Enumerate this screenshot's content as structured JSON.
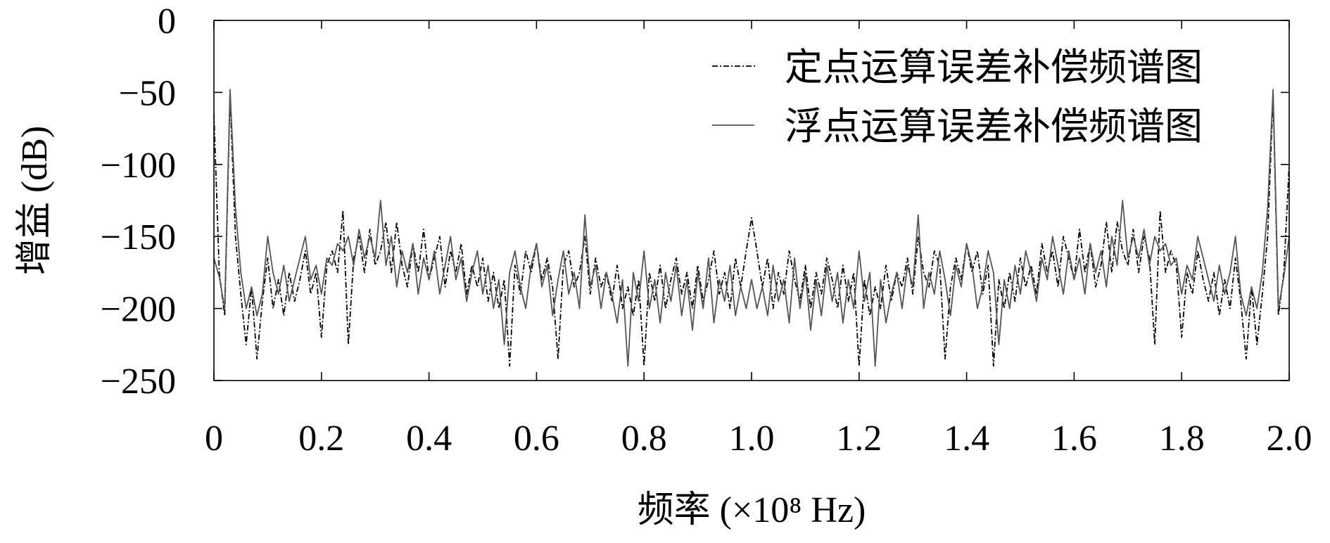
{
  "chart_data": {
    "type": "line",
    "xlabel": "频率 (×10⁸ Hz)",
    "ylabel": "增益 (dB)",
    "xlim": [
      0,
      2.0
    ],
    "ylim": [
      -250,
      0
    ],
    "x_ticks": [
      0,
      0.2,
      0.4,
      0.6,
      0.8,
      1.0,
      1.2,
      1.4,
      1.6,
      1.8,
      2.0
    ],
    "x_tick_labels": [
      "0",
      "0.2",
      "0.4",
      "0.6",
      "0.8",
      "1.0",
      "1.2",
      "1.4",
      "1.6",
      "1.8",
      "2.0"
    ],
    "y_ticks": [
      0,
      -50,
      -100,
      -150,
      -200,
      -250
    ],
    "y_tick_labels": [
      "0",
      "−50",
      "−100",
      "−150",
      "−200",
      "−250"
    ],
    "grid": false,
    "legend": "top-right",
    "x": [
      0,
      0.01,
      0.02,
      0.03,
      0.04,
      0.05,
      0.06,
      0.07,
      0.08,
      0.09,
      0.1,
      0.11,
      0.12,
      0.13,
      0.14,
      0.15,
      0.16,
      0.17,
      0.18,
      0.19,
      0.2,
      0.21,
      0.22,
      0.23,
      0.24,
      0.25,
      0.26,
      0.27,
      0.28,
      0.29,
      0.3,
      0.31,
      0.32,
      0.33,
      0.34,
      0.35,
      0.36,
      0.37,
      0.38,
      0.39,
      0.4,
      0.41,
      0.42,
      0.43,
      0.44,
      0.45,
      0.46,
      0.47,
      0.48,
      0.49,
      0.5,
      0.51,
      0.52,
      0.53,
      0.54,
      0.55,
      0.56,
      0.57,
      0.58,
      0.59,
      0.6,
      0.61,
      0.62,
      0.63,
      0.64,
      0.65,
      0.66,
      0.67,
      0.68,
      0.69,
      0.7,
      0.71,
      0.72,
      0.73,
      0.74,
      0.75,
      0.76,
      0.77,
      0.78,
      0.79,
      0.8,
      0.81,
      0.82,
      0.83,
      0.84,
      0.85,
      0.86,
      0.87,
      0.88,
      0.89,
      0.9,
      0.91,
      0.92,
      0.93,
      0.94,
      0.95,
      0.96,
      0.97,
      0.98,
      0.99,
      1,
      1.01,
      1.02,
      1.03,
      1.04,
      1.05,
      1.06,
      1.07,
      1.08,
      1.09,
      1.1,
      1.11,
      1.12,
      1.13,
      1.14,
      1.15,
      1.16,
      1.17,
      1.18,
      1.19,
      1.2,
      1.21,
      1.22,
      1.23,
      1.24,
      1.25,
      1.26,
      1.27,
      1.28,
      1.29,
      1.3,
      1.31,
      1.32,
      1.33,
      1.34,
      1.35,
      1.36,
      1.37,
      1.38,
      1.39,
      1.4,
      1.41,
      1.42,
      1.43,
      1.44,
      1.45,
      1.46,
      1.47,
      1.48,
      1.49,
      1.5,
      1.51,
      1.52,
      1.53,
      1.54,
      1.55,
      1.56,
      1.57,
      1.58,
      1.59,
      1.6,
      1.61,
      1.62,
      1.63,
      1.64,
      1.65,
      1.66,
      1.67,
      1.68,
      1.69,
      1.7,
      1.71,
      1.72,
      1.73,
      1.74,
      1.75,
      1.76,
      1.77,
      1.78,
      1.79,
      1.8,
      1.81,
      1.82,
      1.83,
      1.84,
      1.85,
      1.86,
      1.87,
      1.88,
      1.89,
      1.9,
      1.91,
      1.92,
      1.93,
      1.94,
      1.95,
      1.96,
      1.97,
      1.98,
      1.99,
      2
    ],
    "series": [
      {
        "name": "定点运算误差补偿频谱图",
        "linestyle": "dash-dot",
        "color": "#000000",
        "values": [
          -65,
          -175,
          -205,
          -52,
          -150,
          -190,
          -225,
          -185,
          -235,
          -195,
          -165,
          -200,
          -180,
          -205,
          -175,
          -195,
          -180,
          -160,
          -190,
          -175,
          -220,
          -170,
          -160,
          -175,
          -132,
          -225,
          -165,
          -150,
          -175,
          -145,
          -170,
          -160,
          -140,
          -175,
          -140,
          -170,
          -185,
          -155,
          -175,
          -145,
          -180,
          -165,
          -150,
          -185,
          -160,
          -175,
          -155,
          -190,
          -170,
          -185,
          -165,
          -195,
          -175,
          -200,
          -180,
          -240,
          -170,
          -190,
          -160,
          -175,
          -155,
          -180,
          -165,
          -185,
          -235,
          -170,
          -160,
          -185,
          -175,
          -150,
          -190,
          -165,
          -185,
          -175,
          -195,
          -170,
          -200,
          -185,
          -205,
          -180,
          -240,
          -175,
          -195,
          -170,
          -200,
          -180,
          -165,
          -190,
          -175,
          -200,
          -170,
          -195,
          -180,
          -160,
          -190,
          -175,
          -200,
          -165,
          -185,
          -160,
          -137,
          -160,
          -185,
          -165,
          -200,
          -175,
          -190,
          -160,
          -180,
          -195,
          -170,
          -200,
          -175,
          -190,
          -165,
          -180,
          -200,
          -170,
          -195,
          -175,
          -240,
          -180,
          -205,
          -185,
          -200,
          -170,
          -195,
          -175,
          -185,
          -165,
          -190,
          -150,
          -175,
          -185,
          -160,
          -170,
          -235,
          -185,
          -165,
          -180,
          -155,
          -175,
          -160,
          -190,
          -170,
          -240,
          -180,
          -200,
          -175,
          -195,
          -165,
          -185,
          -170,
          -190,
          -155,
          -175,
          -160,
          -185,
          -150,
          -165,
          -180,
          -145,
          -175,
          -155,
          -185,
          -170,
          -140,
          -175,
          -140,
          -160,
          -170,
          -145,
          -175,
          -150,
          -165,
          -225,
          -132,
          -175,
          -160,
          -170,
          -220,
          -175,
          -190,
          -160,
          -180,
          -195,
          -175,
          -205,
          -180,
          -200,
          -165,
          -195,
          -235,
          -185,
          -225,
          -190,
          -150,
          -52,
          -205,
          -175,
          -100
        ]
      },
      {
        "name": "浮点运算误差补偿频谱图",
        "linestyle": "solid",
        "color": "#555555",
        "values": [
          -165,
          -178,
          -200,
          -48,
          -130,
          -175,
          -200,
          -185,
          -205,
          -190,
          -150,
          -175,
          -190,
          -170,
          -195,
          -180,
          -165,
          -150,
          -180,
          -170,
          -190,
          -165,
          -170,
          -155,
          -160,
          -150,
          -170,
          -145,
          -165,
          -150,
          -165,
          -125,
          -170,
          -150,
          -185,
          -160,
          -175,
          -155,
          -190,
          -165,
          -180,
          -160,
          -190,
          -170,
          -150,
          -180,
          -165,
          -195,
          -175,
          -160,
          -190,
          -170,
          -200,
          -180,
          -225,
          -175,
          -160,
          -185,
          -200,
          -170,
          -155,
          -185,
          -170,
          -205,
          -180,
          -160,
          -190,
          -175,
          -200,
          -135,
          -185,
          -170,
          -200,
          -175,
          -190,
          -210,
          -180,
          -240,
          -175,
          -195,
          -160,
          -200,
          -180,
          -210,
          -175,
          -195,
          -170,
          -205,
          -180,
          -215,
          -175,
          -200,
          -165,
          -210,
          -180,
          -195,
          -170,
          -205,
          -185,
          -200,
          -180,
          -200,
          -185,
          -205,
          -170,
          -195,
          -180,
          -210,
          -165,
          -200,
          -175,
          -215,
          -180,
          -205,
          -170,
          -195,
          -175,
          -210,
          -180,
          -200,
          -160,
          -195,
          -175,
          -240,
          -180,
          -210,
          -190,
          -175,
          -200,
          -170,
          -185,
          -135,
          -200,
          -175,
          -190,
          -160,
          -180,
          -205,
          -170,
          -185,
          -155,
          -170,
          -200,
          -185,
          -160,
          -175,
          -225,
          -180,
          -200,
          -170,
          -190,
          -160,
          -175,
          -195,
          -165,
          -180,
          -150,
          -170,
          -190,
          -160,
          -180,
          -165,
          -190,
          -155,
          -175,
          -160,
          -185,
          -150,
          -170,
          -125,
          -165,
          -150,
          -165,
          -145,
          -170,
          -150,
          -160,
          -155,
          -170,
          -165,
          -190,
          -170,
          -180,
          -150,
          -165,
          -180,
          -195,
          -170,
          -190,
          -175,
          -150,
          -190,
          -205,
          -185,
          -200,
          -175,
          -130,
          -48,
          -200,
          -178,
          -150
        ]
      }
    ]
  }
}
